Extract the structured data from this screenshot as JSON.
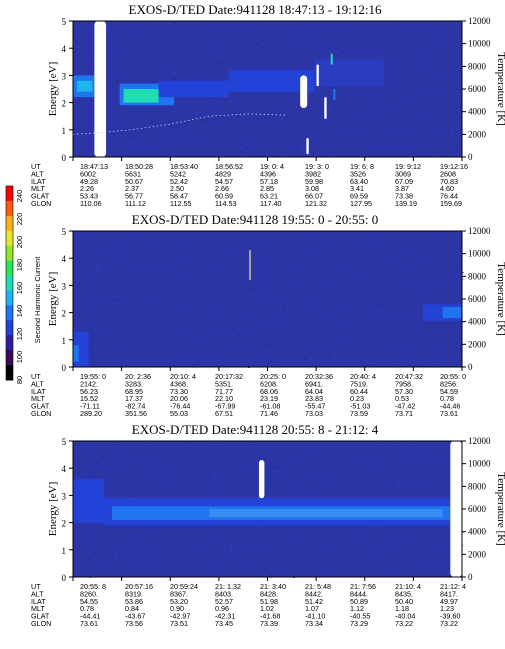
{
  "figure": {
    "ylabel_energy": "Energy [eV]",
    "ylabel_temperature": "Temperature [K]",
    "colorbar_label": "Second Harmonic Current"
  },
  "colorbar": {
    "ticks": [
      "80",
      "100",
      "120",
      "140",
      "160",
      "180",
      "200",
      "220",
      "240"
    ],
    "colors": [
      "#000000",
      "#3a0a56",
      "#2f1f9e",
      "#2342d8",
      "#1f74f0",
      "#1fb3f0",
      "#1fdcb4",
      "#2ee05a",
      "#8fe82a",
      "#e8e82a",
      "#ffb020",
      "#ff5a10",
      "#ff0000"
    ]
  },
  "chart_data": [
    {
      "type": "heatmap",
      "title": "EXOS-D/TED   Date:941128   18:47:13 - 19:12:16",
      "ylabel": "Energy [eV]",
      "ylabel_right": "Temperature [K]",
      "ylim": [
        0,
        5
      ],
      "ylim_right": [
        0,
        12000
      ],
      "yticks": [
        "0",
        "1",
        "2",
        "3",
        "4",
        "5"
      ],
      "yticks_right": [
        "0",
        "2000",
        "4000",
        "6000",
        "8000",
        "10000",
        "12000"
      ],
      "background": "#2b35a6",
      "bands": [
        {
          "t0": 0.0,
          "t1": 0.06,
          "e0": 2.2,
          "e1": 3.0,
          "color": "#1f74f0"
        },
        {
          "t0": 0.01,
          "t1": 0.05,
          "e0": 2.4,
          "e1": 2.8,
          "color": "#1fb3f0"
        },
        {
          "t0": 0.12,
          "t1": 0.26,
          "e0": 1.9,
          "e1": 2.7,
          "color": "#1f74f0"
        },
        {
          "t0": 0.13,
          "t1": 0.22,
          "e0": 2.0,
          "e1": 2.5,
          "color": "#1fdcb4"
        },
        {
          "t0": 0.22,
          "t1": 0.4,
          "e0": 2.2,
          "e1": 2.8,
          "color": "#2342d8"
        },
        {
          "t0": 0.4,
          "t1": 0.62,
          "e0": 2.4,
          "e1": 3.2,
          "color": "#2342d8"
        },
        {
          "t0": 0.62,
          "t1": 0.8,
          "e0": 2.6,
          "e1": 3.6,
          "color": "#2a3cc0"
        }
      ],
      "gaps": [
        {
          "t0": 0.055,
          "t1": 0.085,
          "e0": 0.0,
          "e1": 5.0
        },
        {
          "t0": 0.584,
          "t1": 0.602,
          "e0": 1.8,
          "e1": 3.0
        },
        {
          "t0": 0.626,
          "t1": 0.632,
          "e0": 2.6,
          "e1": 3.4
        },
        {
          "t0": 0.646,
          "t1": 0.652,
          "e0": 1.4,
          "e1": 2.2
        },
        {
          "t0": 0.6,
          "t1": 0.606,
          "e0": 0.1,
          "e1": 0.7
        }
      ],
      "spikes": [
        {
          "t": 0.665,
          "e0": 3.4,
          "e1": 3.8,
          "color": "#1fdcb4"
        },
        {
          "t": 0.672,
          "e0": 2.1,
          "e1": 2.5,
          "color": "#1f74f0"
        }
      ],
      "temperature_trace": [
        [
          0.0,
          2000
        ],
        [
          0.05,
          2100
        ],
        [
          0.15,
          2400
        ],
        [
          0.25,
          2900
        ],
        [
          0.35,
          3600
        ],
        [
          0.45,
          3800
        ],
        [
          0.55,
          3700
        ]
      ],
      "ephemeris": {
        "labels": [
          "UT",
          "ALT",
          "ILAT",
          "MLT",
          "GLAT",
          "GLON"
        ],
        "columns": [
          [
            "18:47:13",
            "6002",
            "49.28",
            "2.26",
            "53.43",
            "110.06"
          ],
          [
            "18:50:28",
            "5631",
            "50.67",
            "2.37",
            "56.77",
            "111.12"
          ],
          [
            "18:53:40",
            "5242",
            "52.42",
            "2.50",
            "58.47",
            "112.55"
          ],
          [
            "18:56:52",
            "4829",
            "54.57",
            "2.66",
            "60.59",
            "114.53"
          ],
          [
            "19: 0: 4",
            "4396",
            "57.18",
            "2.85",
            "63.21",
            "117.40"
          ],
          [
            "19: 3: 0",
            "3982",
            "59.98",
            "3.08",
            "66.07",
            "121.32"
          ],
          [
            "19: 6: 8",
            "3526",
            "63.40",
            "3.41",
            "69.59",
            "127.95"
          ],
          [
            "19: 9:12",
            "3069",
            "67.09",
            "3.87",
            "73.38",
            "139.19"
          ],
          [
            "19:12:16",
            "2608",
            "70.83",
            "4.60",
            "76.44",
            "159.69"
          ]
        ]
      }
    },
    {
      "type": "heatmap",
      "title": "EXOS-D/TED   Date:941128   19:55: 0 - 20:55: 0",
      "ylabel": "Energy [eV]",
      "ylabel_right": "Temperature [K]",
      "ylim": [
        0,
        5
      ],
      "ylim_right": [
        0,
        12000
      ],
      "yticks": [
        "0",
        "1",
        "2",
        "3",
        "4",
        "5"
      ],
      "yticks_right": [
        "0",
        "2000",
        "4000",
        "6000",
        "8000",
        "10000",
        "12000"
      ],
      "background": "#2b35a6",
      "bands": [
        {
          "t0": 0.0,
          "t1": 0.04,
          "e0": 0.0,
          "e1": 1.3,
          "color": "#2342d8"
        },
        {
          "t0": 0.0,
          "t1": 0.015,
          "e0": 0.2,
          "e1": 0.8,
          "color": "#1f74f0"
        },
        {
          "t0": 0.9,
          "t1": 1.0,
          "e0": 1.7,
          "e1": 2.3,
          "color": "#2342d8"
        },
        {
          "t0": 0.95,
          "t1": 1.0,
          "e0": 1.8,
          "e1": 2.2,
          "color": "#1f74f0"
        }
      ],
      "gaps": [],
      "spikes": [
        {
          "t": 0.455,
          "e0": 3.2,
          "e1": 4.3,
          "color": "#a0a0a0"
        }
      ],
      "temperature_trace": [],
      "ephemeris": {
        "labels": [
          "UT",
          "ALT",
          "ILAT",
          "MLT",
          "GLAT",
          "GLON"
        ],
        "columns": [
          [
            "19:55: 0",
            "2142.",
            "56.23",
            "15.52",
            "-71.11",
            "289.20"
          ],
          [
            "20: 2:36",
            "3283.",
            "68.95",
            "17.37",
            "-82.74",
            "351.56"
          ],
          [
            "20:10: 4",
            "4368.",
            "73.30",
            "20.06",
            "-76.44",
            "55.03"
          ],
          [
            "20:17:32",
            "5351.",
            "71.77",
            "22.10",
            "-67.99",
            "67.51"
          ],
          [
            "20:25: 0",
            "6208.",
            "68.06",
            "23.19",
            "-61.08",
            "71.46"
          ],
          [
            "20:32:36",
            "6941.",
            "64.04",
            "23.83",
            "-55.47",
            "73.03"
          ],
          [
            "20:40: 4",
            "7519.",
            "60.44",
            "0.23",
            "-51.03",
            "73.59"
          ],
          [
            "20:47:32",
            "7958.",
            "57.30",
            "0.53",
            "-47.42",
            "73.71"
          ],
          [
            "20:55: 0",
            "8256.",
            "54.59",
            "0.78",
            "-44.46",
            "73.61"
          ]
        ]
      }
    },
    {
      "type": "heatmap",
      "title": "EXOS-D/TED   Date:941128   20:55: 8 - 21:12: 4",
      "ylabel": "Energy [eV]",
      "ylabel_right": "Temperature [K]",
      "ylim": [
        0,
        5
      ],
      "ylim_right": [
        0,
        12000
      ],
      "yticks": [
        "0",
        "1",
        "2",
        "3",
        "4",
        "5"
      ],
      "yticks_right": [
        "0",
        "2000",
        "4000",
        "6000",
        "8000",
        "10000",
        "12000"
      ],
      "background": "#2b35a6",
      "bands": [
        {
          "t0": 0.0,
          "t1": 0.08,
          "e0": 2.0,
          "e1": 3.6,
          "color": "#2342d8"
        },
        {
          "t0": 0.08,
          "t1": 0.97,
          "e0": 1.9,
          "e1": 2.9,
          "color": "#2342d8"
        },
        {
          "t0": 0.1,
          "t1": 0.97,
          "e0": 2.1,
          "e1": 2.6,
          "color": "#1f74f0"
        },
        {
          "t0": 0.35,
          "t1": 0.95,
          "e0": 2.2,
          "e1": 2.5,
          "color": "#3a8cf0"
        }
      ],
      "gaps": [
        {
          "t0": 0.478,
          "t1": 0.492,
          "e0": 2.9,
          "e1": 4.3
        },
        {
          "t0": 0.97,
          "t1": 1.0,
          "e0": 0.0,
          "e1": 5.0
        }
      ],
      "spikes": [],
      "temperature_trace": [],
      "ephemeris": {
        "labels": [
          "UT",
          "ALT",
          "ILAT",
          "MLT",
          "GLAT",
          "GLON"
        ],
        "columns": [
          [
            "20:55: 8",
            "8260.",
            "54.55",
            "0.78",
            "-44.41",
            "73.61"
          ],
          [
            "20:57:16",
            "8319.",
            "53.86",
            "0.84",
            "-43.67",
            "73.56"
          ],
          [
            "20:59:24",
            "8367.",
            "53.20",
            "0.90",
            "-42.97",
            "73.51"
          ],
          [
            "21: 1:32",
            "8403.",
            "52.57",
            "0.96",
            "-42.31",
            "73.45"
          ],
          [
            "21: 3:40",
            "8428.",
            "51.98",
            "1.02",
            "-41.68",
            "73.39"
          ],
          [
            "21: 5:48",
            "8442.",
            "51.42",
            "1.07",
            "-41.10",
            "73.34"
          ],
          [
            "21: 7:56",
            "8444.",
            "50.89",
            "1.12",
            "-40.55",
            "73.29"
          ],
          [
            "21:10: 4",
            "8435.",
            "50.40",
            "1.18",
            "-40.04",
            "73.22"
          ],
          [
            "21:12: 4",
            "8417.",
            "49.97",
            "1.23",
            "-39.60",
            "73.22"
          ]
        ]
      }
    }
  ]
}
